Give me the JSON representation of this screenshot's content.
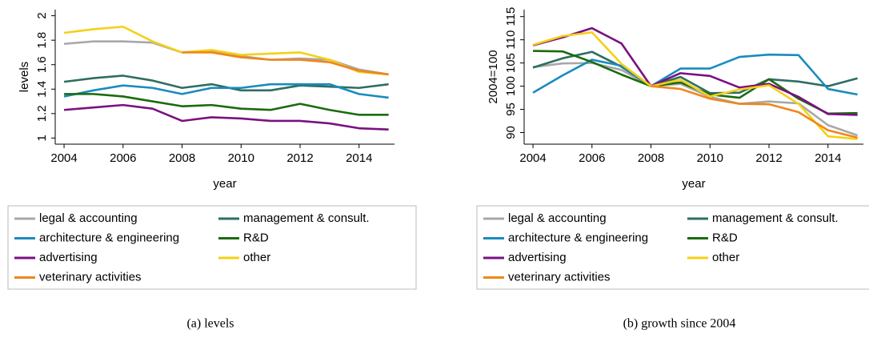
{
  "chart_data": [
    {
      "type": "line",
      "caption": "(a) levels",
      "xlabel": "year",
      "ylabel": "levels",
      "x": [
        2004,
        2005,
        2006,
        2007,
        2008,
        2009,
        2010,
        2011,
        2012,
        2013,
        2014,
        2015
      ],
      "xlim": [
        2003.7,
        2015.2
      ],
      "xticks": [
        2004,
        2006,
        2008,
        2010,
        2012,
        2014
      ],
      "ylim": [
        0.95,
        2.05
      ],
      "yticks": [
        1,
        1.2,
        1.4,
        1.6,
        1.8,
        2
      ],
      "series": [
        {
          "name": "legal & accounting",
          "color": "#a8a8a8",
          "values": [
            1.77,
            1.79,
            1.79,
            1.78,
            1.7,
            1.71,
            1.67,
            1.64,
            1.65,
            1.64,
            1.56,
            1.52
          ]
        },
        {
          "name": "management & consult.",
          "color": "#2e6e62",
          "values": [
            1.46,
            1.49,
            1.51,
            1.47,
            1.41,
            1.44,
            1.39,
            1.39,
            1.43,
            1.42,
            1.41,
            1.44
          ]
        },
        {
          "name": "architecture & engineering",
          "color": "#1a8bbf",
          "values": [
            1.34,
            1.39,
            1.43,
            1.41,
            1.36,
            1.41,
            1.41,
            1.44,
            1.44,
            1.44,
            1.36,
            1.33
          ]
        },
        {
          "name": "R&D",
          "color": "#1b6b0e",
          "values": [
            1.36,
            1.36,
            1.34,
            1.3,
            1.26,
            1.27,
            1.24,
            1.23,
            1.28,
            1.23,
            1.19,
            1.19
          ]
        },
        {
          "name": "advertising",
          "color": "#7a1180",
          "values": [
            1.23,
            1.25,
            1.27,
            1.24,
            1.14,
            1.17,
            1.16,
            1.14,
            1.14,
            1.12,
            1.08,
            1.07
          ]
        },
        {
          "name": "other",
          "color": "#f5d016",
          "values": [
            1.86,
            1.89,
            1.91,
            1.79,
            1.7,
            1.72,
            1.68,
            1.69,
            1.7,
            1.64,
            1.54,
            1.52
          ]
        },
        {
          "name": "veterinary activities",
          "color": "#f0861b",
          "values": [
            null,
            null,
            null,
            null,
            1.7,
            1.7,
            1.66,
            1.64,
            1.64,
            1.62,
            1.55,
            1.52
          ]
        }
      ]
    },
    {
      "type": "line",
      "caption": "(b) growth since 2004",
      "xlabel": "year",
      "ylabel": "2004=100",
      "x": [
        2004,
        2005,
        2006,
        2007,
        2008,
        2009,
        2010,
        2011,
        2012,
        2013,
        2014,
        2015
      ],
      "xlim": [
        2003.7,
        2015.2
      ],
      "xticks": [
        2004,
        2006,
        2008,
        2010,
        2012,
        2014
      ],
      "ylim": [
        87.5,
        116.5
      ],
      "yticks": [
        90,
        95,
        100,
        105,
        110,
        115
      ],
      "series": [
        {
          "name": "legal & accounting",
          "color": "#a8a8a8",
          "values": [
            104.1,
            104.9,
            105,
            103.5,
            100,
            100.5,
            97.7,
            96.2,
            96.7,
            96.3,
            91.6,
            89.4
          ]
        },
        {
          "name": "management & consult.",
          "color": "#2e6e62",
          "values": [
            104,
            106,
            107.4,
            104.2,
            100,
            102,
            98.5,
            98.6,
            101.5,
            101,
            100,
            101.7
          ]
        },
        {
          "name": "architecture & engineering",
          "color": "#1a8bbf",
          "values": [
            98.6,
            102.3,
            105.7,
            104.4,
            100,
            103.8,
            103.8,
            106.3,
            106.8,
            106.7,
            99.4,
            98.2
          ]
        },
        {
          "name": "R&D",
          "color": "#1b6b0e",
          "values": [
            107.6,
            107.5,
            105.2,
            102.5,
            100,
            100.8,
            98.2,
            97.5,
            101.5,
            97.3,
            94.1,
            94.2
          ]
        },
        {
          "name": "advertising",
          "color": "#7a1180",
          "values": [
            108.8,
            110.5,
            112.5,
            109.2,
            100,
            102.8,
            102.2,
            99.7,
            100.5,
            97.7,
            94,
            93.8
          ]
        },
        {
          "name": "other",
          "color": "#f5d016",
          "values": [
            108.9,
            110.8,
            111.6,
            104.8,
            100,
            101.4,
            97.8,
            99.3,
            100.2,
            96.2,
            89.2,
            88.6
          ]
        },
        {
          "name": "veterinary activities",
          "color": "#f0861b",
          "values": [
            null,
            null,
            null,
            null,
            100,
            99.4,
            97.3,
            96.2,
            96.1,
            94.4,
            90.5,
            88.9
          ]
        }
      ]
    }
  ]
}
